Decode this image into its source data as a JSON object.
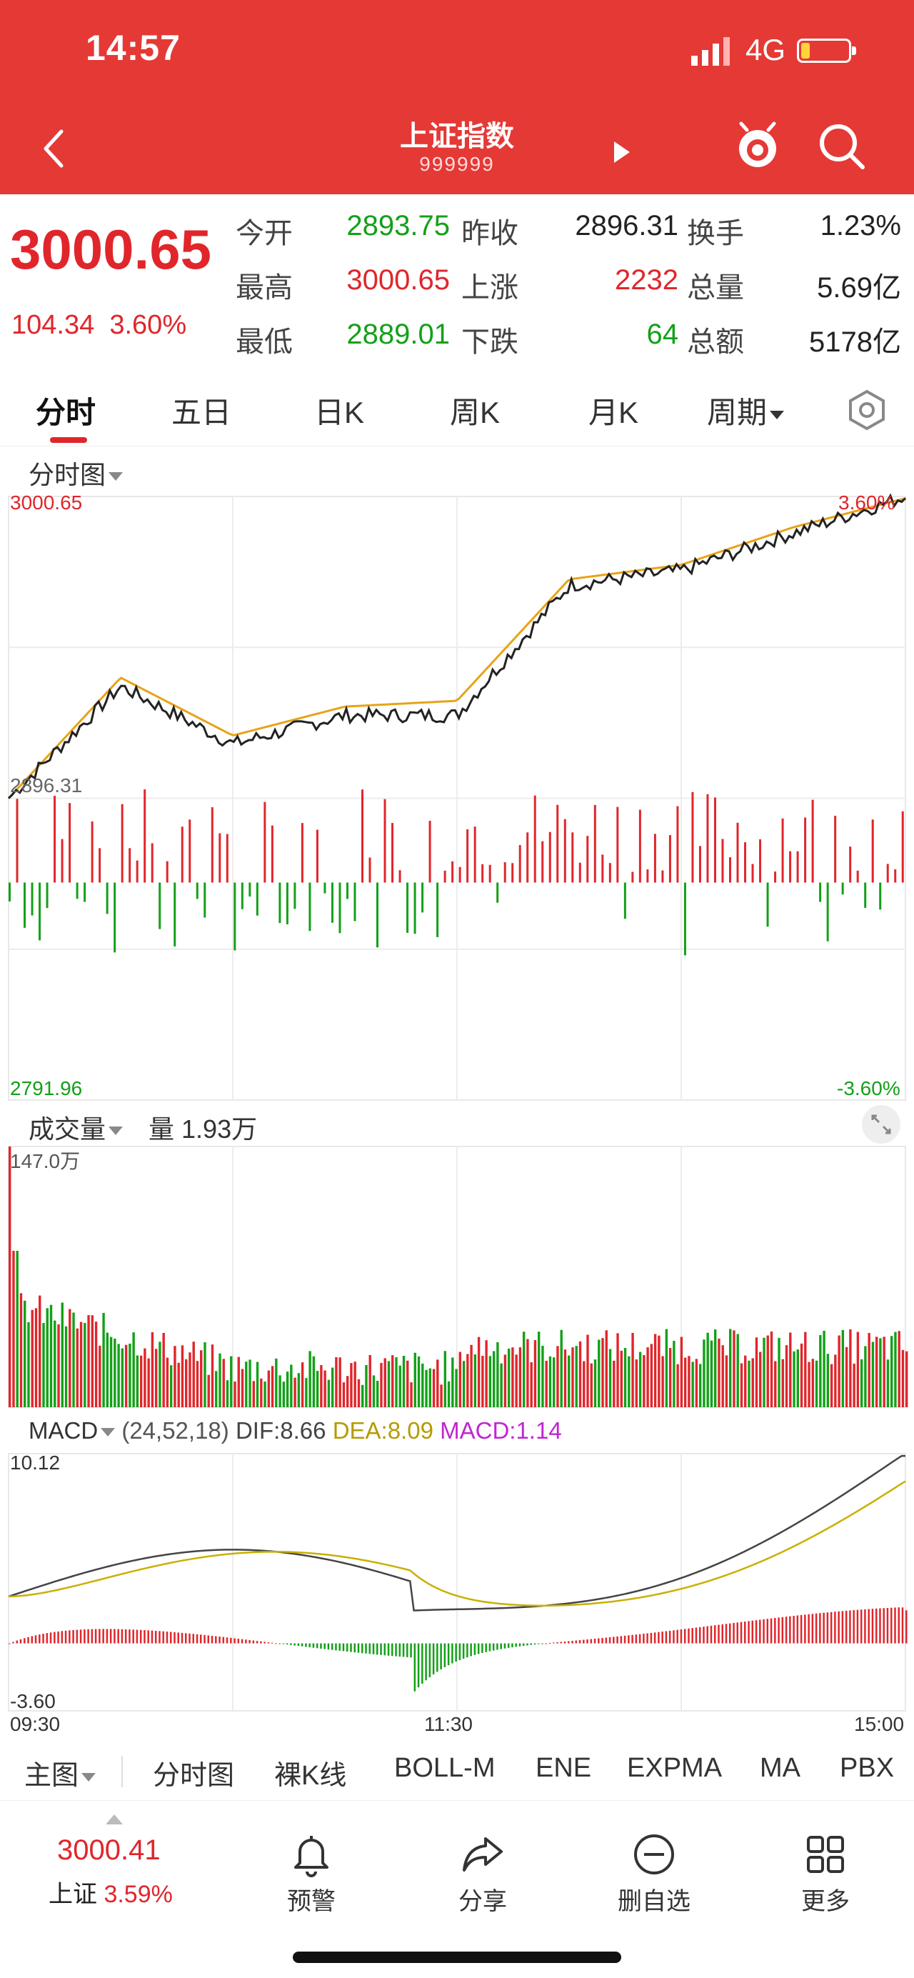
{
  "status": {
    "time": "14:57",
    "network": "4G"
  },
  "header": {
    "title": "上证指数",
    "code": "999999"
  },
  "quote": {
    "price": "3000.65",
    "change": "104.34",
    "change_pct": "3.60%",
    "rows": [
      [
        {
          "label": "今开",
          "value": "2893.75"
        },
        {
          "label": "昨收",
          "value": "2896.31"
        },
        {
          "label": "换手",
          "value": "1.23%"
        }
      ],
      [
        {
          "label": "最高",
          "value": "3000.65"
        },
        {
          "label": "上涨",
          "value": "2232"
        },
        {
          "label": "总量",
          "value": "5.69亿"
        }
      ],
      [
        {
          "label": "最低",
          "value": "2889.01"
        },
        {
          "label": "下跌",
          "value": "64"
        },
        {
          "label": "总额",
          "value": "5178亿"
        }
      ]
    ]
  },
  "tabs": [
    "分时",
    "五日",
    "日K",
    "周K",
    "月K",
    "周期"
  ],
  "intraday": {
    "title": "分时图",
    "top_price": "3000.65",
    "ref_price": "2896.31",
    "bottom_price": "2791.96",
    "top_pct": "3.60%",
    "bottom_pct": "-3.60%"
  },
  "volume": {
    "title": "成交量",
    "current_label": "量",
    "current": "1.93万",
    "max_label": "147.0万"
  },
  "macd": {
    "title": "MACD",
    "params": "(24,52,18)",
    "dif": "DIF:8.66",
    "dea": "DEA:8.09",
    "macd": "MACD:1.14",
    "max": "10.12",
    "min": "-3.60"
  },
  "time_axis": {
    "start": "09:30",
    "mid": "11:30",
    "end": "15:00"
  },
  "indicator_tabs": [
    "主图",
    "分时图",
    "裸K线",
    "BOLL-M",
    "ENE",
    "EXPMA",
    "MA",
    "PBX"
  ],
  "toolbar": {
    "price": "3000.41",
    "name": "上证",
    "pct": "3.59%",
    "items": [
      "预警",
      "分享",
      "删自选",
      "更多"
    ]
  },
  "colors": {
    "up": "#e0262b",
    "down": "#13a018",
    "price_line": "#222222",
    "avg_line": "#e8a317",
    "header_bg": "#e53935"
  },
  "chart_data": {
    "type": "line",
    "x": [
      "09:30",
      "10:00",
      "10:30",
      "11:00",
      "11:30",
      "13:30",
      "14:00",
      "14:30",
      "15:00"
    ],
    "series": [
      {
        "values": [
          2896.3,
          2935,
          2915,
          2925,
          2925,
          2970,
          2975,
          2988,
          3000.6
        ]
      },
      {
        "values": [
          2896.3,
          2938,
          2918,
          2928,
          2930,
          2972,
          2977,
          2990,
          3000
        ]
      }
    ],
    "ylim": [
      2791.96,
      3000.65
    ]
  }
}
